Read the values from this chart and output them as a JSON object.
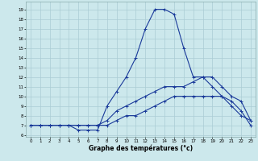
{
  "xlabel": "Graphe des températures (°c)",
  "background_color": "#cce8ec",
  "grid_color": "#aaccd4",
  "line_color": "#1a3a9a",
  "x_ticks": [
    0,
    1,
    2,
    3,
    4,
    5,
    6,
    7,
    8,
    9,
    10,
    11,
    12,
    13,
    14,
    15,
    16,
    17,
    18,
    19,
    20,
    21,
    22,
    23
  ],
  "y_ticks": [
    6,
    7,
    8,
    9,
    10,
    11,
    12,
    13,
    14,
    15,
    16,
    17,
    18,
    19
  ],
  "ylim": [
    5.8,
    19.8
  ],
  "xlim": [
    -0.5,
    23.5
  ],
  "series": [
    {
      "x": [
        0,
        1,
        2,
        3,
        4,
        5,
        6,
        7,
        8,
        9,
        10,
        11,
        12,
        13,
        14,
        15,
        16,
        17,
        18,
        19,
        20,
        21,
        22,
        23
      ],
      "y": [
        7,
        7,
        7,
        7,
        7,
        6.5,
        6.5,
        6.5,
        9,
        10.5,
        12,
        14,
        17,
        19,
        19,
        18.5,
        15,
        12,
        12,
        11,
        10,
        9.5,
        8.5,
        7
      ]
    },
    {
      "x": [
        0,
        1,
        2,
        3,
        4,
        5,
        6,
        7,
        8,
        9,
        10,
        11,
        12,
        13,
        14,
        15,
        16,
        17,
        18,
        19,
        20,
        21,
        22,
        23
      ],
      "y": [
        7,
        7,
        7,
        7,
        7,
        7,
        7,
        7,
        7.5,
        8.5,
        9,
        9.5,
        10,
        10.5,
        11,
        11,
        11,
        11.5,
        12,
        12,
        11,
        10,
        9.5,
        7.5
      ]
    },
    {
      "x": [
        0,
        1,
        2,
        3,
        4,
        5,
        6,
        7,
        8,
        9,
        10,
        11,
        12,
        13,
        14,
        15,
        16,
        17,
        18,
        19,
        20,
        21,
        22,
        23
      ],
      "y": [
        7,
        7,
        7,
        7,
        7,
        7,
        7,
        7,
        7,
        7.5,
        8,
        8,
        8.5,
        9,
        9.5,
        10,
        10,
        10,
        10,
        10,
        10,
        9,
        8,
        7.5
      ]
    }
  ]
}
